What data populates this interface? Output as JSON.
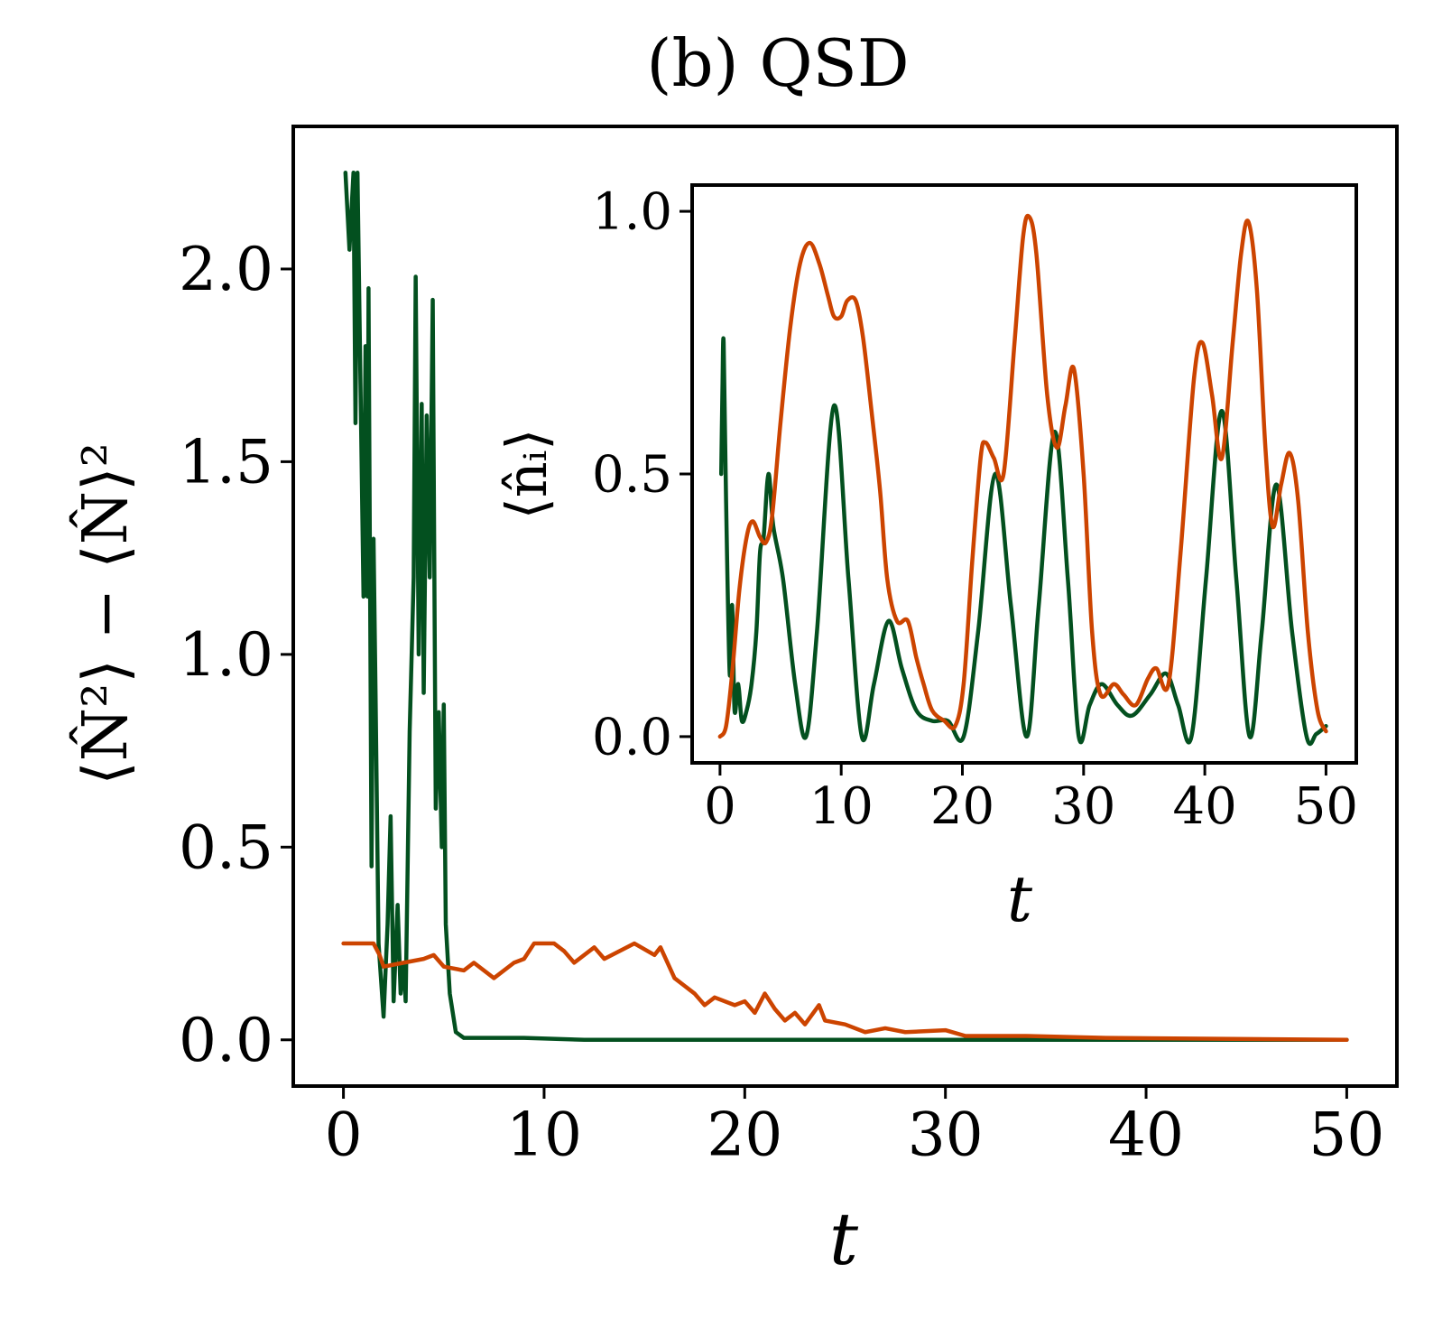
{
  "title": "(b) QSD",
  "colors": {
    "green": "#03501f",
    "orange": "#cc4400"
  },
  "chart_data": [
    {
      "type": "line",
      "xlabel": "t",
      "ylabel": "⟨N̂²⟩ − ⟨N̂⟩²",
      "xlim": [
        -2.5,
        52.5
      ],
      "ylim": [
        -0.12,
        2.37
      ],
      "xticks": [
        0,
        10,
        20,
        30,
        40,
        50
      ],
      "xtick_labels": [
        "0",
        "10",
        "20",
        "30",
        "40",
        "50"
      ],
      "yticks": [
        0.0,
        0.5,
        1.0,
        1.5,
        2.0
      ],
      "ytick_labels": [
        "0.0",
        "0.5",
        "1.0",
        "1.5",
        "2.0"
      ],
      "grid": false,
      "series": [
        {
          "color": "#03501f",
          "points": [
            [
              0.1,
              2.25
            ],
            [
              0.3,
              2.05
            ],
            [
              0.5,
              2.25
            ],
            [
              0.6,
              1.6
            ],
            [
              0.7,
              2.25
            ],
            [
              0.85,
              1.7
            ],
            [
              1.0,
              1.15
            ],
            [
              1.1,
              1.8
            ],
            [
              1.2,
              1.15
            ],
            [
              1.25,
              1.95
            ],
            [
              1.4,
              0.45
            ],
            [
              1.5,
              1.3
            ],
            [
              1.6,
              0.9
            ],
            [
              1.75,
              0.25
            ],
            [
              2.0,
              0.06
            ],
            [
              2.2,
              0.3
            ],
            [
              2.35,
              0.58
            ],
            [
              2.5,
              0.1
            ],
            [
              2.7,
              0.35
            ],
            [
              2.85,
              0.12
            ],
            [
              3.0,
              0.2
            ],
            [
              3.1,
              0.1
            ],
            [
              3.3,
              0.8
            ],
            [
              3.5,
              1.2
            ],
            [
              3.6,
              1.98
            ],
            [
              3.75,
              1.0
            ],
            [
              3.9,
              1.65
            ],
            [
              4.0,
              0.9
            ],
            [
              4.15,
              1.62
            ],
            [
              4.3,
              1.2
            ],
            [
              4.45,
              1.92
            ],
            [
              4.6,
              0.6
            ],
            [
              4.75,
              0.85
            ],
            [
              4.9,
              0.5
            ],
            [
              5.0,
              0.87
            ],
            [
              5.1,
              0.3
            ],
            [
              5.3,
              0.12
            ],
            [
              5.6,
              0.02
            ],
            [
              6.0,
              0.005
            ],
            [
              9.0,
              0.005
            ],
            [
              12.0,
              0.0
            ],
            [
              50.0,
              0.0
            ]
          ]
        },
        {
          "color": "#cc4400",
          "points": [
            [
              0,
              0.25
            ],
            [
              1.5,
              0.25
            ],
            [
              1.8,
              0.22
            ],
            [
              2.0,
              0.19
            ],
            [
              3.0,
              0.2
            ],
            [
              4.0,
              0.21
            ],
            [
              4.5,
              0.22
            ],
            [
              5.0,
              0.19
            ],
            [
              6.0,
              0.18
            ],
            [
              6.5,
              0.2
            ],
            [
              7.5,
              0.16
            ],
            [
              8.5,
              0.2
            ],
            [
              9.0,
              0.21
            ],
            [
              9.5,
              0.25
            ],
            [
              10.5,
              0.25
            ],
            [
              11.0,
              0.23
            ],
            [
              11.5,
              0.2
            ],
            [
              12.5,
              0.24
            ],
            [
              13.0,
              0.21
            ],
            [
              14.5,
              0.25
            ],
            [
              15.5,
              0.22
            ],
            [
              15.8,
              0.24
            ],
            [
              16.5,
              0.16
            ],
            [
              17.0,
              0.14
            ],
            [
              17.5,
              0.12
            ],
            [
              18.0,
              0.09
            ],
            [
              18.5,
              0.11
            ],
            [
              19.5,
              0.09
            ],
            [
              20.0,
              0.1
            ],
            [
              20.5,
              0.07
            ],
            [
              21.0,
              0.12
            ],
            [
              21.5,
              0.08
            ],
            [
              22.0,
              0.05
            ],
            [
              22.5,
              0.07
            ],
            [
              23.0,
              0.04
            ],
            [
              23.7,
              0.09
            ],
            [
              24.0,
              0.05
            ],
            [
              25.0,
              0.04
            ],
            [
              26.0,
              0.02
            ],
            [
              27.0,
              0.03
            ],
            [
              28.0,
              0.02
            ],
            [
              30.0,
              0.025
            ],
            [
              31.0,
              0.01
            ],
            [
              34.0,
              0.01
            ],
            [
              38.0,
              0.005
            ],
            [
              50.0,
              0.0
            ]
          ]
        }
      ]
    },
    {
      "type": "line",
      "xlabel": "t",
      "ylabel": "⟨n̂ᵢ⟩",
      "xlim": [
        -2.3,
        52.5
      ],
      "ylim": [
        -0.05,
        1.05
      ],
      "xticks": [
        0,
        10,
        20,
        30,
        40,
        50
      ],
      "xtick_labels": [
        "0",
        "10",
        "20",
        "30",
        "40",
        "50"
      ],
      "yticks": [
        0.0,
        0.5,
        1.0
      ],
      "ytick_labels": [
        "0.0",
        "0.5",
        "1.0"
      ],
      "grid": false,
      "series": [
        {
          "color": "#03501f",
          "points": [
            [
              0.1,
              0.5
            ],
            [
              0.2,
              0.66
            ],
            [
              0.3,
              0.75
            ],
            [
              0.5,
              0.45
            ],
            [
              0.8,
              0.12
            ],
            [
              1.0,
              0.25
            ],
            [
              1.2,
              0.05
            ],
            [
              1.5,
              0.1
            ],
            [
              1.8,
              0.03
            ],
            [
              2.2,
              0.05
            ],
            [
              2.6,
              0.1
            ],
            [
              3.0,
              0.2
            ],
            [
              3.3,
              0.35
            ],
            [
              3.6,
              0.38
            ],
            [
              4.0,
              0.5
            ],
            [
              4.4,
              0.4
            ],
            [
              5.2,
              0.3
            ],
            [
              6.2,
              0.1
            ],
            [
              7.1,
              0.0
            ],
            [
              8.0,
              0.2
            ],
            [
              9.4,
              0.63
            ],
            [
              10.6,
              0.3
            ],
            [
              11.7,
              0.0
            ],
            [
              12.7,
              0.1
            ],
            [
              13.9,
              0.22
            ],
            [
              15.0,
              0.13
            ],
            [
              16.2,
              0.05
            ],
            [
              17.5,
              0.03
            ],
            [
              18.8,
              0.03
            ],
            [
              20.1,
              0.0
            ],
            [
              21.3,
              0.2
            ],
            [
              22.7,
              0.5
            ],
            [
              24.0,
              0.25
            ],
            [
              25.3,
              0.0
            ],
            [
              26.3,
              0.25
            ],
            [
              27.6,
              0.58
            ],
            [
              28.7,
              0.3
            ],
            [
              29.6,
              0.0
            ],
            [
              30.5,
              0.06
            ],
            [
              31.5,
              0.1
            ],
            [
              32.8,
              0.06
            ],
            [
              34.0,
              0.04
            ],
            [
              35.5,
              0.08
            ],
            [
              36.8,
              0.12
            ],
            [
              37.8,
              0.06
            ],
            [
              38.9,
              0.0
            ],
            [
              40.1,
              0.3
            ],
            [
              41.4,
              0.62
            ],
            [
              42.6,
              0.3
            ],
            [
              43.7,
              0.0
            ],
            [
              44.7,
              0.2
            ],
            [
              45.9,
              0.48
            ],
            [
              47.2,
              0.2
            ],
            [
              48.4,
              0.0
            ],
            [
              49.2,
              0.005
            ],
            [
              50.0,
              0.02
            ]
          ]
        },
        {
          "color": "#cc4400",
          "points": [
            [
              0,
              0.0
            ],
            [
              0.5,
              0.02
            ],
            [
              1.0,
              0.12
            ],
            [
              1.6,
              0.28
            ],
            [
              2.2,
              0.38
            ],
            [
              2.7,
              0.41
            ],
            [
              3.3,
              0.38
            ],
            [
              3.8,
              0.37
            ],
            [
              4.3,
              0.42
            ],
            [
              5.0,
              0.6
            ],
            [
              5.8,
              0.78
            ],
            [
              6.6,
              0.9
            ],
            [
              7.4,
              0.94
            ],
            [
              8.2,
              0.9
            ],
            [
              8.9,
              0.84
            ],
            [
              9.4,
              0.8
            ],
            [
              10.0,
              0.8
            ],
            [
              10.5,
              0.83
            ],
            [
              11.2,
              0.83
            ],
            [
              11.8,
              0.76
            ],
            [
              12.5,
              0.62
            ],
            [
              13.2,
              0.47
            ],
            [
              13.8,
              0.3
            ],
            [
              14.6,
              0.22
            ],
            [
              15.5,
              0.22
            ],
            [
              16.2,
              0.15
            ],
            [
              16.8,
              0.1
            ],
            [
              17.5,
              0.05
            ],
            [
              18.5,
              0.03
            ],
            [
              19.4,
              0.02
            ],
            [
              20.1,
              0.1
            ],
            [
              20.8,
              0.33
            ],
            [
              21.5,
              0.53
            ],
            [
              21.9,
              0.56
            ],
            [
              22.6,
              0.53
            ],
            [
              23.4,
              0.5
            ],
            [
              24.3,
              0.75
            ],
            [
              25.0,
              0.95
            ],
            [
              25.5,
              0.99
            ],
            [
              26.1,
              0.92
            ],
            [
              27.0,
              0.65
            ],
            [
              27.8,
              0.55
            ],
            [
              28.5,
              0.63
            ],
            [
              29.2,
              0.7
            ],
            [
              30.0,
              0.5
            ],
            [
              30.7,
              0.2
            ],
            [
              31.4,
              0.08
            ],
            [
              32.5,
              0.1
            ],
            [
              33.3,
              0.08
            ],
            [
              34.3,
              0.06
            ],
            [
              35.3,
              0.11
            ],
            [
              36.0,
              0.13
            ],
            [
              37.0,
              0.1
            ],
            [
              38.0,
              0.35
            ],
            [
              39.1,
              0.68
            ],
            [
              39.8,
              0.75
            ],
            [
              40.6,
              0.65
            ],
            [
              41.4,
              0.53
            ],
            [
              42.3,
              0.75
            ],
            [
              43.0,
              0.92
            ],
            [
              43.6,
              0.98
            ],
            [
              44.3,
              0.85
            ],
            [
              45.0,
              0.55
            ],
            [
              45.6,
              0.4
            ],
            [
              46.3,
              0.48
            ],
            [
              47.0,
              0.54
            ],
            [
              47.7,
              0.45
            ],
            [
              48.5,
              0.2
            ],
            [
              49.3,
              0.05
            ],
            [
              50.0,
              0.01
            ]
          ]
        }
      ]
    }
  ]
}
